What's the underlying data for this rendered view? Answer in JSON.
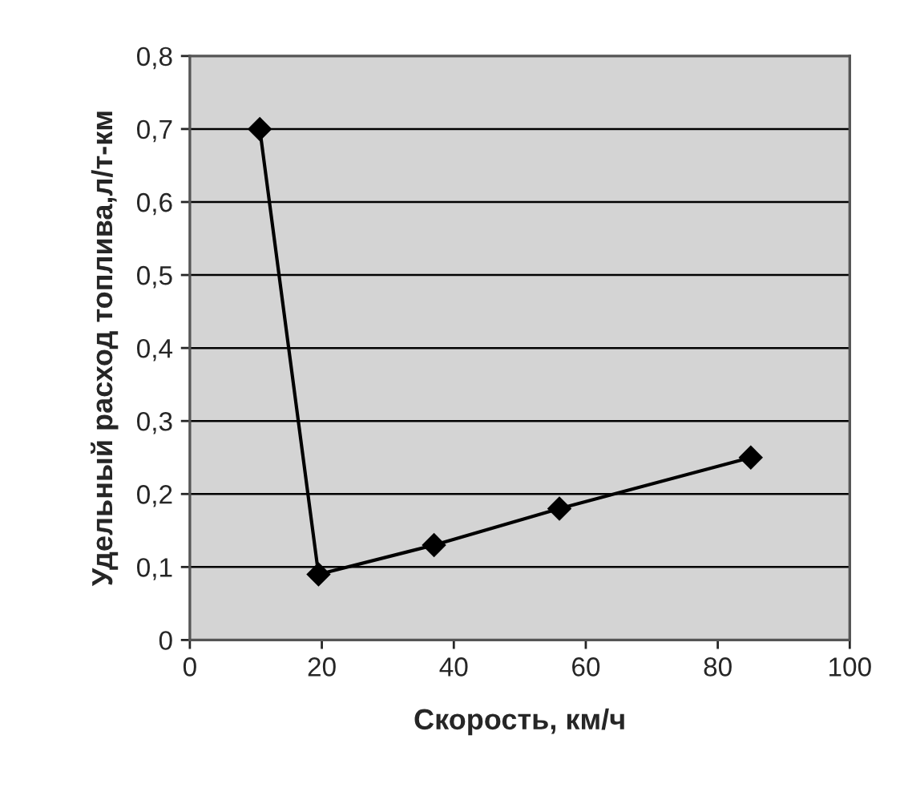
{
  "chart_data": {
    "type": "line",
    "xlabel": "Скорость, км/ч",
    "ylabel": "Удельный расход топлива,л/т-км",
    "x": [
      10.6,
      19.5,
      37,
      56,
      85
    ],
    "series": [
      {
        "color": "#000000",
        "values": [
          0.7,
          0.09,
          0.13,
          0.18,
          0.25
        ]
      }
    ],
    "xlim": [
      0,
      100
    ],
    "xticks": [
      0,
      20,
      40,
      60,
      80,
      100
    ],
    "ylim": [
      0,
      0.8
    ],
    "yticks": [
      0,
      {
        "value": 0.1,
        "label": "0,1"
      },
      {
        "value": 0.2,
        "label": "0,2"
      },
      {
        "value": 0.3,
        "label": "0,3"
      },
      {
        "value": 0.4,
        "label": "0,4"
      },
      {
        "value": 0.5,
        "label": "0,5"
      },
      {
        "value": 0.6,
        "label": "0,6"
      },
      {
        "value": 0.7,
        "label": "0,7"
      },
      {
        "value": 0.8,
        "label": "0,8"
      }
    ],
    "grid": "y",
    "marker": "diamond",
    "line_style": "solid"
  }
}
